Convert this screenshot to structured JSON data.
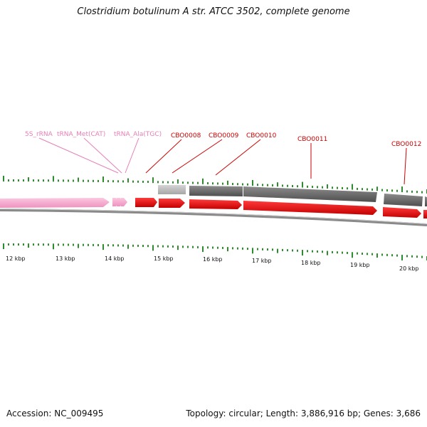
{
  "title": "Clostridium botulinum A str. ATCC 3502, complete genome",
  "footer": {
    "accession": "Accession: NC_009495",
    "summary": "Topology: circular; Length: 3,886,916 bp; Genes: 3,686"
  },
  "colors": {
    "cds": "#ee0000",
    "rna": "#f4a6cc",
    "rna_label": "#e67fb6",
    "gene_label": "#cc0000",
    "gene_dark": "#6a6a6a",
    "gene_light": "#b8b8b8",
    "tick": "#2e8b2e",
    "backbone": "#8a8a8a"
  },
  "scale_labels": [
    "12 kbp",
    "13 kbp",
    "14 kbp",
    "15 kbp",
    "16 kbp",
    "17 kbp",
    "18 kbp",
    "19 kbp",
    "20 kbp"
  ],
  "rna_labels": [
    "5S_rRNA",
    "tRNA_Met(CAT)",
    "tRNA_Ala(TGC)"
  ],
  "cds_labels": [
    "CBO0008",
    "CBO0009",
    "CBO0010",
    "CBO0011",
    "CBO0012"
  ]
}
